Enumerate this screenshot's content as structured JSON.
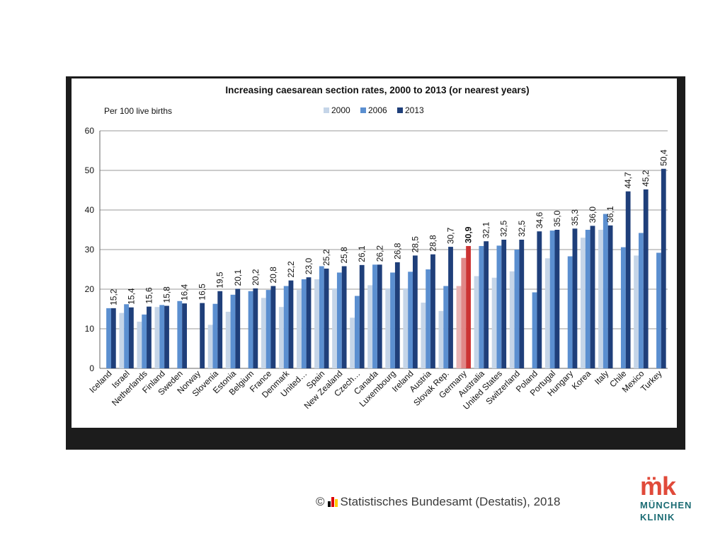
{
  "chart_data": {
    "type": "bar",
    "title": "Increasing caesarean section rates, 2000 to 2013 (or nearest years)",
    "ylabel": "Per 100 live births",
    "ylim": [
      0,
      60
    ],
    "yticks": [
      0,
      10,
      20,
      30,
      40,
      50,
      60
    ],
    "grid": true,
    "legend_position": "top",
    "categories": [
      "Iceland",
      "Israel",
      "Netherlands",
      "Finland",
      "Sweden",
      "Norway",
      "Slovenia",
      "Estonia",
      "Belgium",
      "France",
      "Denmark",
      "United…",
      "Spain",
      "New Zealand",
      "Czech…",
      "Canada",
      "Luxembourg",
      "Ireland",
      "Austria",
      "Slovak Rep.",
      "Germany",
      "Australia",
      "United States",
      "Switzerland",
      "Poland",
      "Portugal",
      "Hungary",
      "Korea",
      "Italy",
      "Chile",
      "Mexico",
      "Turkey"
    ],
    "highlight_category": "Germany",
    "highlight_colors": [
      "#e8b4b4",
      "#e08888",
      "#cc3333"
    ],
    "series": [
      {
        "name": "2000",
        "color": "#c5d5e8",
        "values": [
          null,
          14.0,
          11.8,
          15.5,
          null,
          null,
          11.0,
          14.3,
          null,
          17.8,
          15.5,
          19.8,
          22.5,
          20.2,
          12.8,
          21.0,
          20.2,
          20.2,
          16.6,
          14.5,
          20.8,
          23.3,
          22.9,
          24.5,
          null,
          27.8,
          null,
          33.0,
          35.0,
          null,
          28.5,
          null
        ]
      },
      {
        "name": "2006",
        "color": "#5b8fd0",
        "values": [
          15.2,
          16.2,
          13.6,
          16.0,
          17.0,
          null,
          16.3,
          18.6,
          19.5,
          19.8,
          20.8,
          22.5,
          25.8,
          24.2,
          18.3,
          26.2,
          24.2,
          24.4,
          25.0,
          20.8,
          27.9,
          30.9,
          31.0,
          30.0,
          19.2,
          34.8,
          28.3,
          35.0,
          39.0,
          30.6,
          34.2,
          29.2
        ]
      },
      {
        "name": "2013",
        "color": "#1f3f7a",
        "values": [
          15.2,
          15.4,
          15.6,
          15.8,
          16.4,
          16.5,
          19.5,
          20.1,
          20.2,
          20.8,
          22.2,
          23.0,
          25.2,
          25.8,
          26.1,
          26.2,
          26.8,
          28.5,
          28.8,
          30.7,
          30.9,
          32.1,
          32.5,
          32.5,
          34.6,
          35.0,
          35.3,
          36.0,
          36.1,
          44.7,
          45.2,
          50.4
        ]
      }
    ],
    "data_labels": [
      "15,2",
      "15,4",
      "15,6",
      "15,8",
      "16,4",
      "16,5",
      "19,5",
      "20,1",
      "20,2",
      "20,8",
      "22,2",
      "23,0",
      "25,2",
      "25,8",
      "26,1",
      "26,2",
      "26,8",
      "28,5",
      "28,8",
      "30,7",
      "30,9",
      "32,1",
      "32,5",
      "32,5",
      "34,6",
      "35,0",
      "35,3",
      "36,0",
      "36,1",
      "44,7",
      "45,2",
      "50,4"
    ]
  },
  "footer": {
    "source": "Statistisches Bundesamt (Destatis), 2018",
    "copyright_symbol": "©",
    "destatis_logo_colors": [
      "#000000",
      "#dd0000",
      "#ffcc00"
    ]
  },
  "logo": {
    "mark": "m̈k",
    "line1": "MÜNCHEN",
    "line2": "KLINIK",
    "mark_color": "#e04a3a",
    "text_color": "#1a6b73"
  },
  "colors": {
    "frame": "#1c1c1c",
    "grid": "#999999"
  }
}
